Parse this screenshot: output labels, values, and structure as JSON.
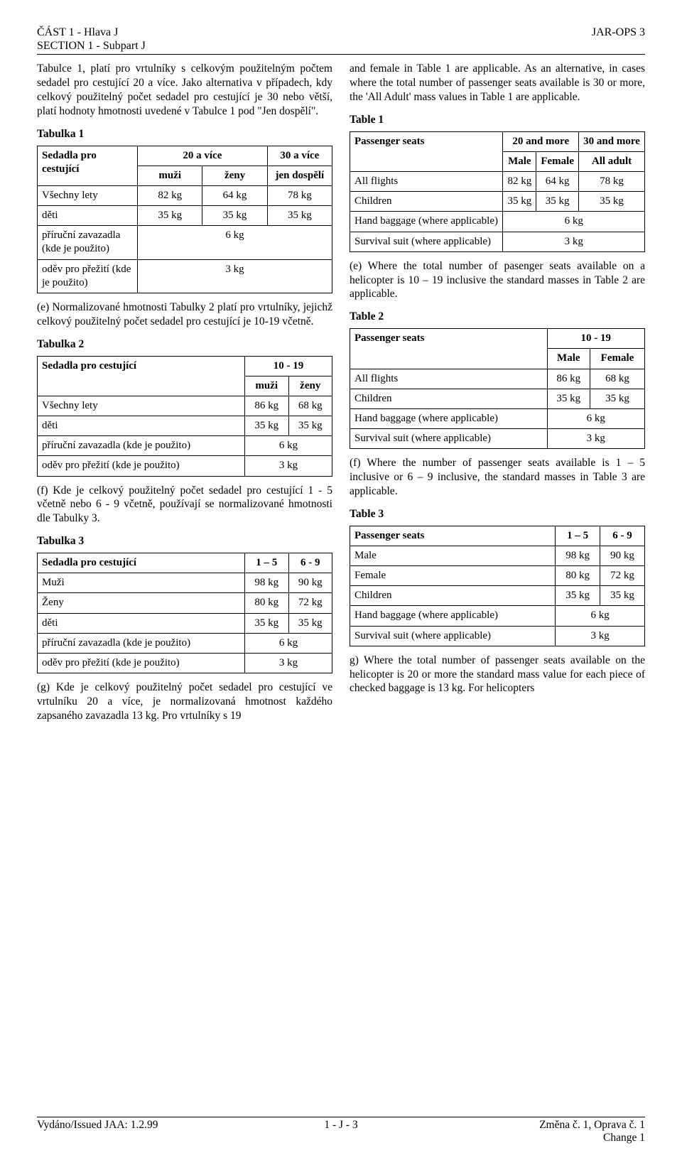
{
  "header": {
    "left_line1": "ČÁST 1 - Hlava J",
    "left_line2": "SECTION 1 - Subpart J",
    "right": "JAR-OPS 3"
  },
  "left_col": {
    "intro": "Tabulce 1, platí pro vrtulníky s celkovým použitelným počtem sedadel pro cestující 20 a více. Jako alternativa v případech, kdy celkový použitelný počet sedadel pro cestující je 30 nebo větší, platí hodnoty hmotnosti uvedené v Tabulce 1 pod \"Jen dospělí\".",
    "t1": {
      "title": "Tabulka 1",
      "seats_label": "Sedadla pro cestující",
      "h1": "20 a více",
      "h2": "30 a více",
      "sub1": "muži",
      "sub2": "ženy",
      "sub3": "jen dospělí",
      "r1_label": "Všechny lety",
      "r1": [
        "82 kg",
        "64 kg",
        "78 kg"
      ],
      "r2_label": "děti",
      "r2": [
        "35 kg",
        "35 kg",
        "35 kg"
      ],
      "r3_label": "příruční    zavazadla (kde je použito)",
      "r3_val": "6 kg",
      "r4_label": "oděv pro přežití (kde je použito)",
      "r4_val": "3 kg"
    },
    "para_e": "(e)      Normalizované hmotnosti Tabulky 2 platí pro vrtulníky, jejichž celkový použitelný počet sedadel pro cestující  je 10-19 včetně.",
    "t2": {
      "title": "Tabulka 2",
      "seats_label": "Sedadla pro cestující",
      "h1": "10 - 19",
      "sub1": "muži",
      "sub2": "ženy",
      "r1_label": "Všechny lety",
      "r1": [
        "86 kg",
        "68 kg"
      ],
      "r2_label": "děti",
      "r2": [
        "35 kg",
        "35 kg"
      ],
      "r3_label": "příruční zavazadla (kde je použito)",
      "r3_val": "6 kg",
      "r4_label": "oděv pro přežití (kde je použito)",
      "r4_val": "3 kg"
    },
    "para_f": "(f)      Kde je celkový použitelný počet sedadel pro cestující 1 - 5 včetně nebo 6 - 9 včetně, používají se normalizované hmotnosti dle Tabulky 3.",
    "t3": {
      "title": "Tabulka 3",
      "seats_label": "Sedadla pro cestující",
      "h1": "1 – 5",
      "h2": "6 - 9",
      "r1_label": "Muži",
      "r1": [
        "98 kg",
        "90 kg"
      ],
      "r2_label": "Ženy",
      "r2": [
        "80 kg",
        "72 kg"
      ],
      "r3_label": "děti",
      "r3": [
        "35 kg",
        "35 kg"
      ],
      "r4_label": "příruční zavazadla (kde je použito)",
      "r4_val": "6 kg",
      "r5_label": "oděv pro přežití (kde je použito)",
      "r5_val": "3 kg"
    },
    "para_g": "(g)      Kde je celkový použitelný počet sedadel pro cestující ve vrtulníku 20 a více, je normalizovaná hmotnost každého zapsaného zavazadla 13 kg. Pro vrtulníky s 19"
  },
  "right_col": {
    "intro": "and female in Table 1 are applicable. As an alternative, in cases where the total number of passenger seats available is 30 or more, the 'All Adult' mass values in Table 1 are applicable.",
    "t1": {
      "title": "Table 1",
      "seats_label": "Passenger seats",
      "h1": "20 and more",
      "h2": "30 and more",
      "sub1": "Male",
      "sub2": "Female",
      "sub3": "All adult",
      "r1_label": "All flights",
      "r1": [
        "82 kg",
        "64 kg",
        "78 kg"
      ],
      "r2_label": "Children",
      "r2": [
        "35 kg",
        "35 kg",
        "35 kg"
      ],
      "r3_label": "Hand baggage (where applicable)",
      "r3_val": "6 kg",
      "r4_label": "Survival suit (where applicable)",
      "r4_val": "3 kg"
    },
    "para_e": "(e)       Where the total number of pasenger seats available on a helicopter is 10 – 19 inclusive the standard masses in Table 2 are applicable.",
    "t2": {
      "title": "Table 2",
      "seats_label": "Passenger seats",
      "h1": "10 - 19",
      "sub1": "Male",
      "sub2": "Female",
      "r1_label": "All flights",
      "r1": [
        "86 kg",
        "68 kg"
      ],
      "r2_label": "Children",
      "r2": [
        "35 kg",
        "35 kg"
      ],
      "r3_label": "Hand baggage (where applicable)",
      "r3_val": "6 kg",
      "r4_label": "Survival suit (where applicable)",
      "r4_val": "3 kg"
    },
    "para_f": "(f)        Where the number of passenger seats available is 1 – 5 inclusive or 6 – 9 inclusive, the standard masses in Table 3 are applicable.",
    "t3": {
      "title": "Table 3",
      "seats_label": "Passenger seats",
      "h1": "1 – 5",
      "h2": "6 - 9",
      "r1_label": "Male",
      "r1": [
        "98 kg",
        "90 kg"
      ],
      "r2_label": "Female",
      "r2": [
        "80 kg",
        "72 kg"
      ],
      "r3_label": "Children",
      "r3": [
        "35 kg",
        "35 kg"
      ],
      "r4_label": "Hand baggage (where applicable)",
      "r4_val": "6 kg",
      "r5_label": "Survival suit (where applicable)",
      "r5_val": "3 kg"
    },
    "para_g": "g)       Where the total number of passenger seats available on the helicopter is 20 or more the standard mass value for each piece of checked baggage is 13 kg. For helicopters"
  },
  "footer": {
    "left": "Vydáno/Issued JAA: 1.2.99",
    "center": "1 - J - 3",
    "right1": "Změna č. 1, Oprava č. 1",
    "right2": "Change 1"
  },
  "colwidths": {
    "t1_c0": 34,
    "t1_c1": 22,
    "t1_c2": 22,
    "t1_c3": 22,
    "t2_c0": 40,
    "t2_c1": 30,
    "t2_c2": 30,
    "t3_c0": 40,
    "t3_c1": 30,
    "t3_c2": 30
  }
}
